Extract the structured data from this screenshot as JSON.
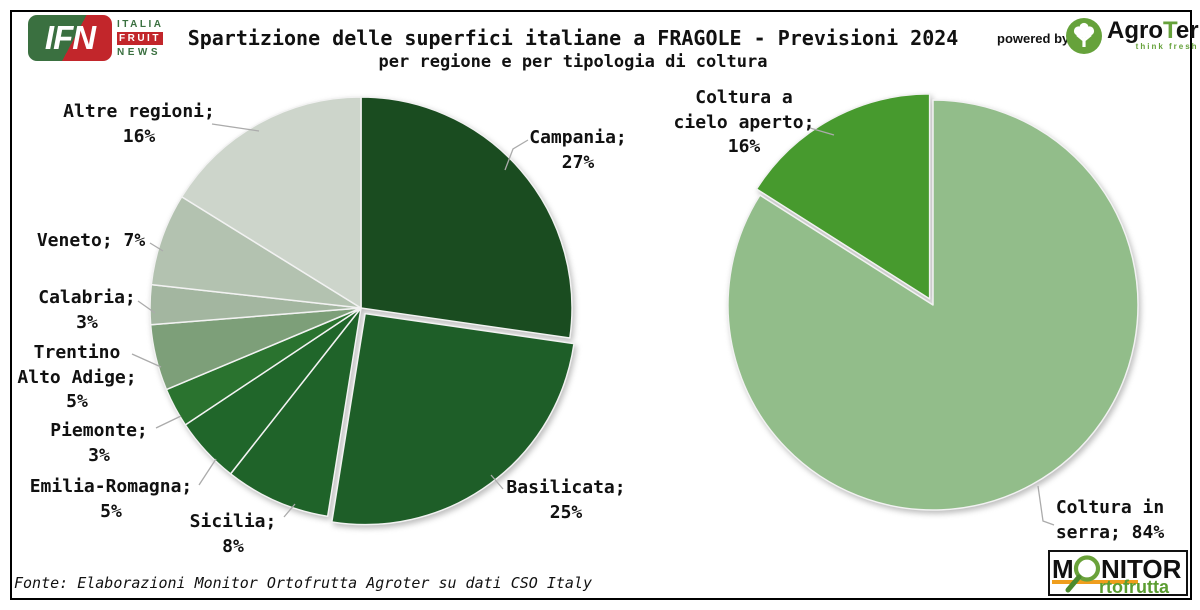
{
  "header": {
    "title": "Spartizione delle superfici italiane a FRAGOLE - Previsioni 2024",
    "subtitle": "per regione e per tipologia di coltura",
    "powered_by": "powered by",
    "ifn": {
      "abbr": "IFN",
      "word1": "ITALIA",
      "word2": "FRUIT",
      "word3": "NEWS"
    },
    "agroter": {
      "name_pre": "Agro",
      "name_t": "T",
      "name_post": "er",
      "tagline": "think fresh"
    }
  },
  "footer": {
    "source": "Fonte: Elaborazioni Monitor Ortofrutta Agroter su dati CSO Italy",
    "monitor": {
      "m": "M",
      "nitor": "NITOR",
      "sub": "rtofrutta"
    }
  },
  "colors": {
    "leader_line": "#ababab",
    "label_text": "#111111",
    "slice_stroke": "#f2f2f2",
    "ifn_green": "#3a7040",
    "ifn_red": "#c2262b",
    "agroter_green": "#66a23b",
    "monitor_orange": "#ef9e1e",
    "monitor_green": "#5b9d31"
  },
  "chart_data": [
    {
      "type": "pie",
      "title": "per regione",
      "unit": "%",
      "start_angle_deg": 0,
      "direction": "clockwise",
      "slices": [
        {
          "name": "Campania",
          "value": 27,
          "color": "#1a4c20",
          "exploded": false,
          "label_lines": [
            "Campania;",
            "27%"
          ]
        },
        {
          "name": "Basilicata",
          "value": 25,
          "color": "#1e5e28",
          "exploded": true,
          "label_lines": [
            "Basilicata;",
            "25%"
          ]
        },
        {
          "name": "Sicilia",
          "value": 8,
          "color": "#1f6329",
          "exploded": false,
          "label_lines": [
            "Sicilia;",
            "8%"
          ]
        },
        {
          "name": "Emilia-Romagna",
          "value": 5,
          "color": "#20662a",
          "exploded": false,
          "label_lines": [
            "Emilia-Romagna;",
            "5%"
          ]
        },
        {
          "name": "Piemonte",
          "value": 3,
          "color": "#2a732f",
          "exploded": false,
          "label_lines": [
            "Piemonte;",
            "3%"
          ]
        },
        {
          "name": "Trentino Alto Adige",
          "value": 5,
          "color": "#7d9f79",
          "exploded": false,
          "label_lines": [
            "Trentino",
            "Alto Adige;",
            "5%"
          ]
        },
        {
          "name": "Calabria",
          "value": 3,
          "color": "#a3b6a0",
          "exploded": false,
          "label_lines": [
            "Calabria;",
            "3%"
          ]
        },
        {
          "name": "Veneto",
          "value": 7,
          "color": "#b3c2b0",
          "exploded": false,
          "label_lines": [
            "Veneto; 7%"
          ]
        },
        {
          "name": "Altre regioni",
          "value": 16,
          "color": "#cdd5cb",
          "exploded": false,
          "label_lines": [
            "Altre regioni;",
            "16%"
          ]
        }
      ]
    },
    {
      "type": "pie",
      "title": "per tipologia di coltura",
      "unit": "%",
      "start_angle_deg": 0,
      "direction": "clockwise",
      "slices": [
        {
          "name": "Coltura in serra",
          "value": 84,
          "color": "#92bd8a",
          "exploded": false,
          "label_lines": [
            "Coltura in",
            "serra; 84%"
          ]
        },
        {
          "name": "Coltura a cielo aperto",
          "value": 16,
          "color": "#479a2e",
          "exploded": true,
          "label_lines": [
            "Coltura a",
            "cielo aperto;",
            "16%"
          ]
        }
      ]
    }
  ]
}
